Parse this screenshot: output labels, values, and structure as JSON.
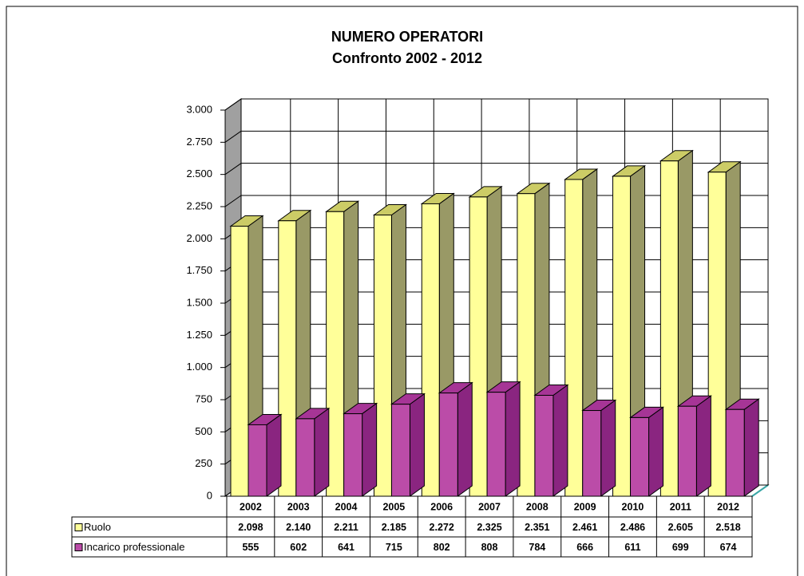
{
  "chart_data": {
    "type": "bar3d",
    "title": "NUMERO OPERATORI",
    "subtitle": "Confronto  2002 - 2012",
    "categories": [
      "2002",
      "2003",
      "2004",
      "2005",
      "2006",
      "2007",
      "2008",
      "2009",
      "2010",
      "2011",
      "2012"
    ],
    "series": [
      {
        "name": "Ruolo",
        "color": "#ffff99",
        "side_color": "#999966",
        "top_color": "#cccc66",
        "values": [
          2098,
          2140,
          2211,
          2185,
          2272,
          2325,
          2351,
          2461,
          2486,
          2605,
          2518
        ],
        "value_labels": [
          "2.098",
          "2.140",
          "2.211",
          "2.185",
          "2.272",
          "2.325",
          "2.351",
          "2.461",
          "2.486",
          "2.605",
          "2.518"
        ]
      },
      {
        "name": "Incarico professionale",
        "color": "#bb4ca8",
        "side_color": "#8a2580",
        "top_color": "#a63596",
        "values": [
          555,
          602,
          641,
          715,
          802,
          808,
          784,
          666,
          611,
          699,
          674
        ]
      }
    ],
    "ylim": [
      0,
      3000
    ],
    "yticks": [
      0,
      250,
      500,
      750,
      {
        "value": 1000,
        "label": "1.000"
      },
      {
        "value": 1250,
        "label": "1.250"
      },
      {
        "value": 1500,
        "label": "1.500"
      },
      {
        "value": 1750,
        "label": "1.750"
      },
      {
        "value": 2000,
        "label": "2.000"
      },
      {
        "value": 2250,
        "label": "2.250"
      },
      {
        "value": 2500,
        "label": "2.500"
      },
      {
        "value": 2750,
        "label": "2.750"
      },
      {
        "value": 3000,
        "label": "3.000"
      }
    ],
    "grid": true,
    "data_table": true
  }
}
